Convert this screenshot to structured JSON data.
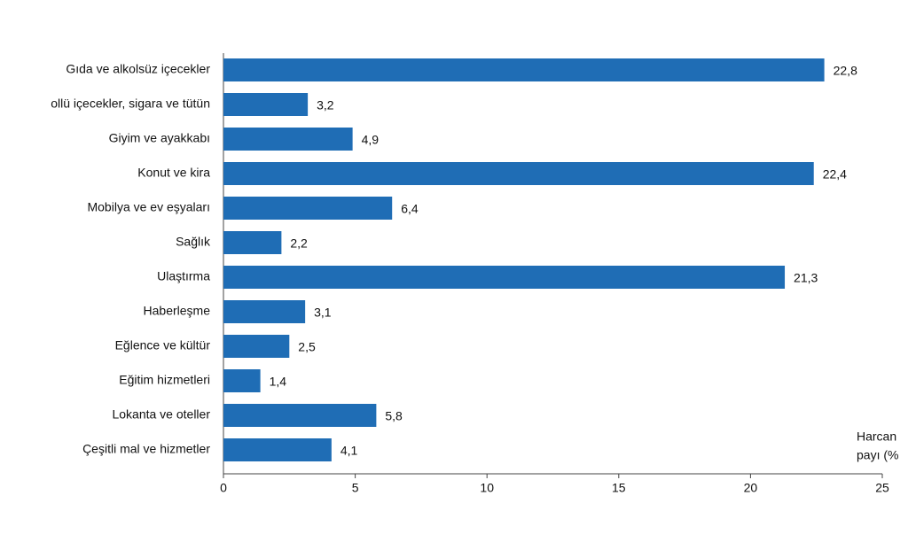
{
  "chart_data": {
    "type": "barh",
    "categories": [
      "Gıda ve alkolsüz içecekler",
      "ollü içecekler, sigara ve tütün",
      "Giyim ve ayakkabı",
      "Konut ve kira",
      "Mobilya ve ev eşyaları",
      "Sağlık",
      "Ulaştırma",
      "Haberleşme",
      "Eğlence ve kültür",
      "Eğitim hizmetleri",
      "Lokanta ve oteller",
      "Çeşitli mal ve hizmetler"
    ],
    "values": [
      22.8,
      3.2,
      4.9,
      22.4,
      6.4,
      2.2,
      21.3,
      3.1,
      2.5,
      1.4,
      5.8,
      4.1
    ],
    "value_labels": [
      "22,8",
      "3,2",
      "4,9",
      "22,4",
      "6,4",
      "2,2",
      "21,3",
      "3,1",
      "2,5",
      "1,4",
      "5,8",
      "4,1"
    ],
    "color": "#1f6db5",
    "xlim": [
      0,
      25
    ],
    "xticks": [
      0,
      5,
      10,
      15,
      20,
      25
    ],
    "xlabel_lines": [
      "Harcan",
      "payı (%"
    ]
  }
}
